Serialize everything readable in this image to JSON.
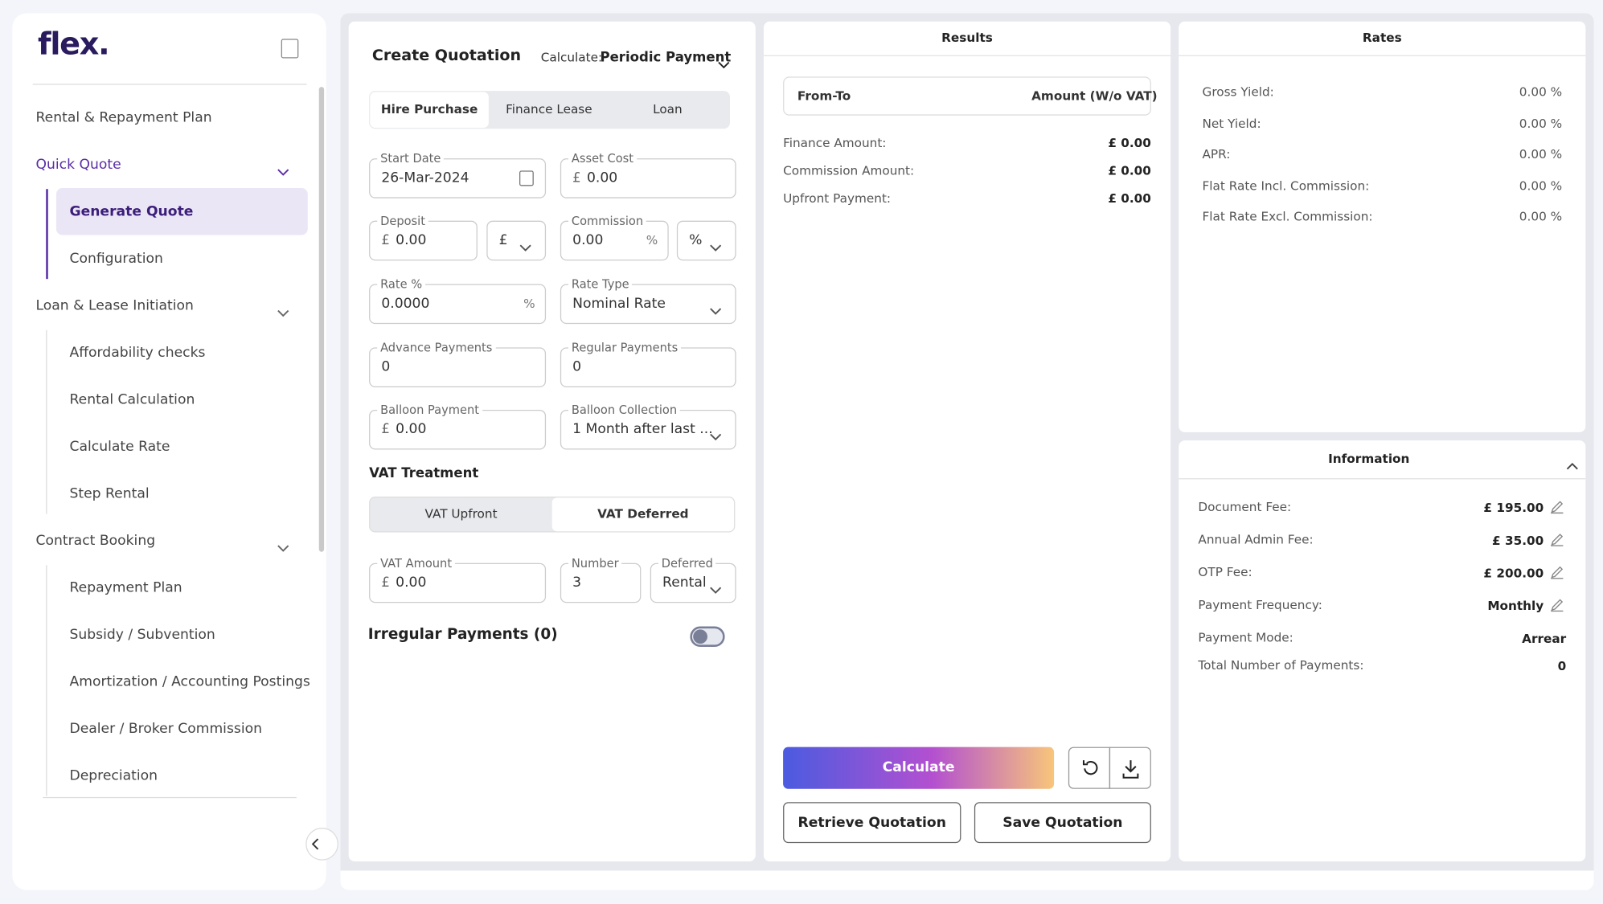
{
  "sidebar": {
    "logo": "flex.",
    "top": "Rental & Repayment Plan",
    "groups": [
      {
        "label": "Quick Quote",
        "items": [
          "Generate Quote",
          "Configuration"
        ]
      },
      {
        "label": "Loan & Lease Initiation",
        "items": [
          "Affordability checks",
          "Rental Calculation",
          "Calculate Rate",
          "Step Rental"
        ]
      },
      {
        "label": "Contract Booking",
        "items": [
          "Repayment Plan",
          "Subsidy / Subvention",
          "Amortization / Accounting Postings",
          "Dealer / Broker Commission",
          "Depreciation"
        ]
      }
    ]
  },
  "quotation": {
    "title": "Create Quotation",
    "calculate_label": "Calculate:",
    "calculate_value": "Periodic Payment",
    "tabs": [
      "Hire Purchase",
      "Finance Lease",
      "Loan"
    ],
    "fields": [
      {
        "label": "Start Date",
        "value": "26-Mar-2024"
      },
      {
        "label": "Asset Cost",
        "prefix": "£",
        "value": "0.00"
      },
      {
        "label": "Deposit",
        "prefix": "£",
        "value": "0.00"
      },
      {
        "value": "£"
      },
      {
        "label": "Commission",
        "value": "0.00",
        "suffix": "%"
      },
      {
        "value": "%"
      },
      {
        "label": "Rate %",
        "value": "0.0000",
        "suffix": "%"
      },
      {
        "label": "Rate Type",
        "value": "Nominal Rate"
      },
      {
        "label": "Advance Payments",
        "value": "0"
      },
      {
        "label": "Regular Payments",
        "value": "0"
      },
      {
        "label": "Balloon Payment",
        "prefix": "£",
        "value": "0.00"
      },
      {
        "label": "Balloon Collection",
        "value": "1 Month after last ..."
      },
      {
        "label": "VAT Amount",
        "prefix": "£",
        "value": "0.00"
      },
      {
        "label": "Number",
        "value": "3"
      },
      {
        "label": "Deferred",
        "value": "Rental"
      }
    ],
    "vat_title": "VAT Treatment",
    "vat_options": [
      "VAT Upfront",
      "VAT Deferred"
    ],
    "irregular": "Irregular Payments (0)"
  },
  "results": {
    "title": "Results",
    "columns": [
      "From-To",
      "Amount (W/o VAT)"
    ],
    "rows": [
      {
        "label": "Finance Amount:",
        "value": "£ 0.00"
      },
      {
        "label": "Commission Amount:",
        "value": "£ 0.00"
      },
      {
        "label": "Upfront Payment:",
        "value": "£ 0.00"
      }
    ],
    "buttons": {
      "calculate": "Calculate",
      "retrieve": "Retrieve Quotation",
      "save": "Save Quotation"
    }
  },
  "rates": {
    "title": "Rates",
    "rows": [
      {
        "label": "Gross Yield:",
        "value": "0.00 %"
      },
      {
        "label": "Net Yield:",
        "value": "0.00 %"
      },
      {
        "label": "APR:",
        "value": "0.00 %"
      },
      {
        "label": "Flat Rate Incl. Commission:",
        "value": "0.00 %"
      },
      {
        "label": "Flat Rate Excl. Commission:",
        "value": "0.00 %"
      }
    ]
  },
  "information": {
    "title": "Information",
    "rows": [
      {
        "label": "Document Fee:",
        "value": "£ 195.00"
      },
      {
        "label": "Annual Admin Fee:",
        "value": "£ 35.00"
      },
      {
        "label": "OTP Fee:",
        "value": "£ 200.00"
      },
      {
        "label": "Payment Frequency:",
        "value": "Monthly"
      },
      {
        "label": "Payment Mode:",
        "value": "Arrear"
      },
      {
        "label": "Total Number of Payments:",
        "value": "0"
      }
    ]
  }
}
